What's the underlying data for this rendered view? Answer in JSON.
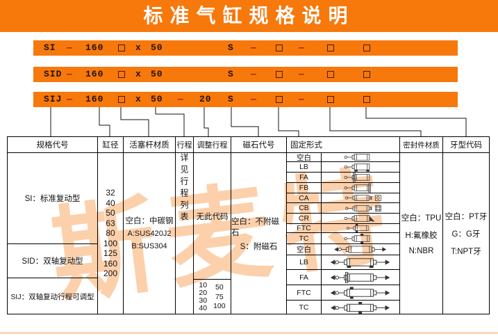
{
  "title": "标准气缸规格说明",
  "watermark": "斯麦特",
  "colors": {
    "accent_orange": "#f7780b",
    "watermark_orange": "#f7790b"
  },
  "bars": [
    {
      "code": "SI",
      "dash_a": "—",
      "bore": "160",
      "x_sep": "x",
      "stroke": "50",
      "magnet": "S",
      "dash_b": "—",
      "dash_c": "—"
    },
    {
      "code": "SID",
      "dash_a": "—",
      "bore": "160",
      "x_sep": "x",
      "stroke": "50",
      "magnet": "S",
      "dash_b": "—",
      "dash_c": "—"
    },
    {
      "code": "SIJ",
      "dash_a": "—",
      "bore": "160",
      "x_sep": "x",
      "stroke": "50",
      "dash_adj": "—",
      "adj_stroke": "20",
      "magnet": "S",
      "dash_b": "—",
      "dash_c": "—"
    }
  ],
  "table": {
    "headers": [
      "规格代号",
      "缸径",
      "活塞杆材质",
      "行程",
      "调整行程",
      "磁石代号",
      "固定形式",
      "密封件材质",
      "牙型代码"
    ],
    "spec_types": [
      "SI：标准复动型",
      "SID：双轴复动型",
      "SIJ：双轴复动行程可调型"
    ],
    "bores": [
      "32",
      "40",
      "50",
      "63",
      "80",
      "100",
      "125",
      "160",
      "200"
    ],
    "rod_materials": [
      "空白：中碳钢",
      "A:SUS420J2",
      "B:SUS304"
    ],
    "stroke_note": "详见行程列表",
    "adjust_stroke": {
      "none_note": "无此代码",
      "values_left": [
        "10",
        "20",
        "30",
        "40"
      ],
      "values_right": [
        "50",
        "75",
        "100"
      ]
    },
    "magnet_codes": [
      "空白：不附磁石",
      "S：附磁石"
    ],
    "mount_rows": [
      {
        "label": "空白",
        "icon": "cylinder-basic"
      },
      {
        "label": "LB",
        "icon": "cylinder-foot-mount"
      },
      {
        "label": "FA",
        "icon": "cylinder-front-flange"
      },
      {
        "label": "FB",
        "icon": "cylinder-rear-flange"
      },
      {
        "label": "CA",
        "icon": "cylinder-rear-clevis-a"
      },
      {
        "label": "CB",
        "icon": "cylinder-rear-clevis-b"
      },
      {
        "label": "CR",
        "icon": "cylinder-rear-hinge"
      },
      {
        "label": "FTC",
        "icon": "cylinder-front-trunnion"
      },
      {
        "label": "TC",
        "icon": "cylinder-center-trunnion"
      },
      {
        "label": "空白",
        "icon": "double-rod-basic"
      },
      {
        "label": "LB",
        "icon": "double-rod-foot-mount"
      },
      {
        "label": "FA",
        "icon": "double-rod-front-flange"
      },
      {
        "label": "FTC",
        "icon": "double-rod-front-trunnion"
      },
      {
        "label": "TC",
        "icon": "double-rod-center-trunnion"
      }
    ],
    "seal_materials": [
      "空白：TPU",
      "H:氟橡胶",
      "N:NBR"
    ],
    "thread_codes": [
      "空白：PT牙",
      "G：G牙",
      "T:NPT牙"
    ]
  }
}
